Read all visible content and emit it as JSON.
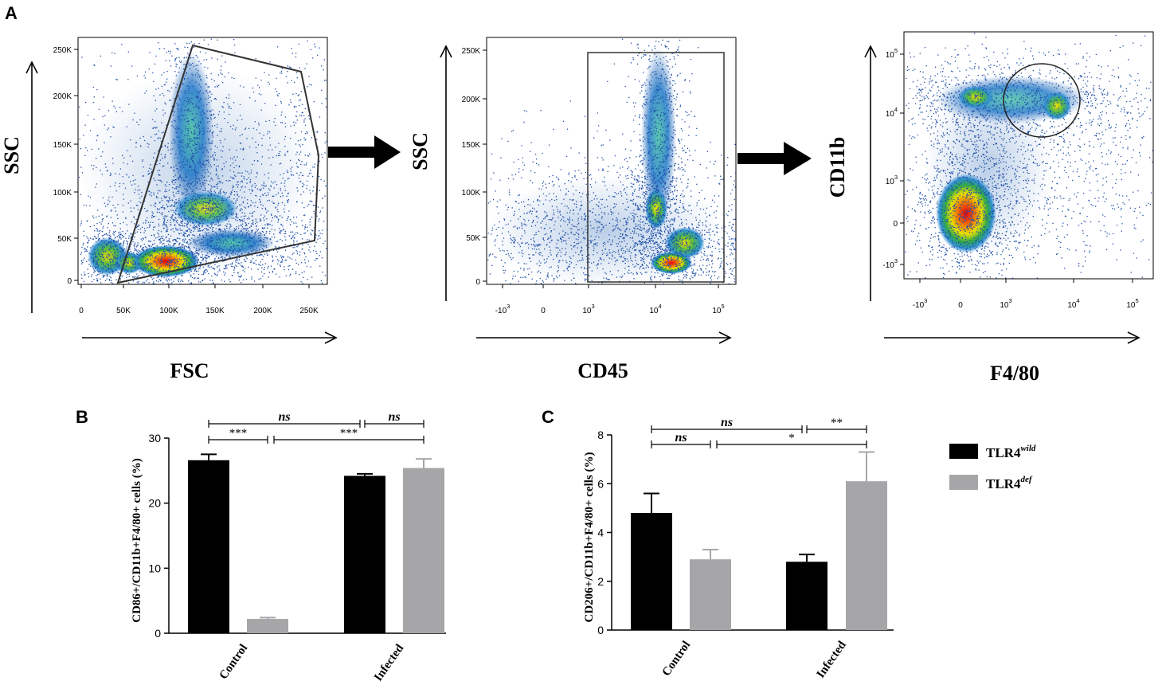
{
  "panel_labels": {
    "a": "A",
    "b": "B",
    "c": "C"
  },
  "flow_plots": [
    {
      "id": "fsc-ssc",
      "xlabel": "FSC",
      "ylabel": "SSC",
      "xticks": [
        {
          "base": "0",
          "sup": ""
        },
        {
          "base": "50K",
          "sup": ""
        },
        {
          "base": "100K",
          "sup": ""
        },
        {
          "base": "150K",
          "sup": ""
        },
        {
          "base": "200K",
          "sup": ""
        },
        {
          "base": "250K",
          "sup": ""
        }
      ],
      "yticks": [
        {
          "base": "0",
          "sup": ""
        },
        {
          "base": "50K",
          "sup": ""
        },
        {
          "base": "100K",
          "sup": ""
        },
        {
          "base": "150K",
          "sup": ""
        },
        {
          "base": "200K",
          "sup": ""
        },
        {
          "base": "250K",
          "sup": ""
        }
      ],
      "gate": "polygon"
    },
    {
      "id": "cd45-ssc",
      "xlabel": "CD45",
      "ylabel": "SSC",
      "xticks": [
        {
          "base": "-10",
          "sup": "3"
        },
        {
          "base": "0",
          "sup": ""
        },
        {
          "base": "10",
          "sup": "3"
        },
        {
          "base": "10",
          "sup": "4"
        },
        {
          "base": "10",
          "sup": "5"
        }
      ],
      "yticks": [
        {
          "base": "0",
          "sup": ""
        },
        {
          "base": "50K",
          "sup": ""
        },
        {
          "base": "100K",
          "sup": ""
        },
        {
          "base": "150K",
          "sup": ""
        },
        {
          "base": "200K",
          "sup": ""
        },
        {
          "base": "250K",
          "sup": ""
        }
      ],
      "gate": "rectangle"
    },
    {
      "id": "f480-cd11b",
      "xlabel": "F4/80",
      "ylabel": "CD11b",
      "xticks": [
        {
          "base": "-10",
          "sup": "3"
        },
        {
          "base": "0",
          "sup": ""
        },
        {
          "base": "10",
          "sup": "3"
        },
        {
          "base": "10",
          "sup": "4"
        },
        {
          "base": "10",
          "sup": "5"
        }
      ],
      "yticks": [
        {
          "base": "-10",
          "sup": "3"
        },
        {
          "base": "0",
          "sup": ""
        },
        {
          "base": "10",
          "sup": "3"
        },
        {
          "base": "10",
          "sup": "4"
        },
        {
          "base": "10",
          "sup": "5"
        }
      ],
      "gate": "circle"
    }
  ],
  "legend": {
    "entries": [
      {
        "base": "TLR4",
        "sup": "wild",
        "color": "#000000"
      },
      {
        "base": "TLR4",
        "sup": "def",
        "color": "#a6a6a8"
      }
    ]
  },
  "chart_data": [
    {
      "type": "bar",
      "panel": "B",
      "categories": [
        "Control",
        "Infected"
      ],
      "series": [
        {
          "name": "TLR4wild",
          "color": "#000000",
          "values": [
            26.6,
            24.2
          ],
          "errors": [
            0.9,
            0.3
          ]
        },
        {
          "name": "TLR4def",
          "color": "#a6a6a8",
          "values": [
            2.2,
            25.4
          ],
          "errors": [
            0.2,
            1.4
          ]
        }
      ],
      "ylabel": "CD86+/CD11b+F4/80+ cells (%)",
      "ylim": [
        0,
        30
      ],
      "yticks": [
        "0",
        "10",
        "20",
        "30"
      ],
      "significance": [
        {
          "from": [
            0,
            0
          ],
          "to": [
            0,
            1
          ],
          "label": "***",
          "row": 1
        },
        {
          "from": [
            0,
            1
          ],
          "to": [
            1,
            1
          ],
          "label": "***",
          "row": 1
        },
        {
          "from": [
            0,
            0
          ],
          "to": [
            1,
            0
          ],
          "label": "ns",
          "row": 0
        },
        {
          "from": [
            1,
            0
          ],
          "to": [
            1,
            1
          ],
          "label": "ns",
          "row": 0
        }
      ]
    },
    {
      "type": "bar",
      "panel": "C",
      "categories": [
        "Control",
        "Infected"
      ],
      "series": [
        {
          "name": "TLR4wild",
          "color": "#000000",
          "values": [
            4.8,
            2.8
          ],
          "errors": [
            0.8,
            0.3
          ]
        },
        {
          "name": "TLR4def",
          "color": "#a6a6a8",
          "values": [
            2.9,
            6.1
          ],
          "errors": [
            0.4,
            1.2
          ]
        }
      ],
      "ylabel": "CD206+/CD11b+F4/80+ cells (%)",
      "ylim": [
        0,
        8
      ],
      "yticks": [
        "0",
        "2",
        "4",
        "6",
        "8"
      ],
      "significance": [
        {
          "from": [
            0,
            0
          ],
          "to": [
            0,
            1
          ],
          "label": "ns",
          "row": 1
        },
        {
          "from": [
            0,
            1
          ],
          "to": [
            1,
            1
          ],
          "label": "*",
          "row": 1
        },
        {
          "from": [
            0,
            0
          ],
          "to": [
            1,
            0
          ],
          "label": "ns",
          "row": 0
        },
        {
          "from": [
            1,
            0
          ],
          "to": [
            1,
            1
          ],
          "label": "**",
          "row": 0
        }
      ]
    }
  ]
}
